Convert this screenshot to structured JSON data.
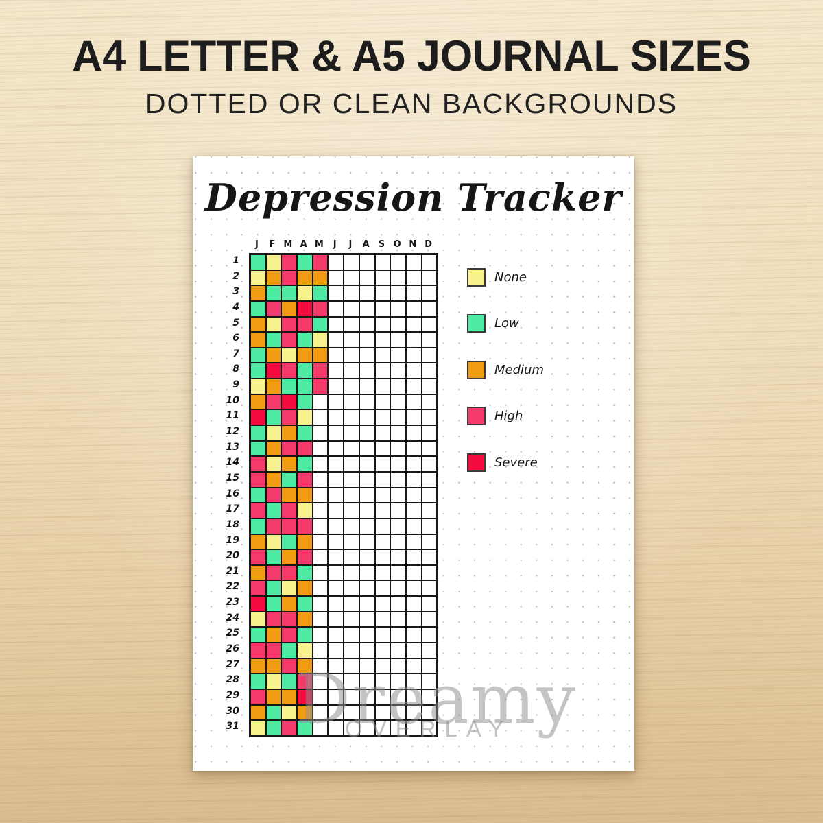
{
  "header": {
    "line1": "A4 LETTER & A5 JOURNAL SIZES",
    "line2": "DOTTED OR CLEAN BACKGROUNDS"
  },
  "page": {
    "title": "Depression Tracker",
    "watermark_line1": "Dreamy",
    "watermark_line2": "OVERLAY"
  },
  "legend": {
    "items": [
      {
        "label": "None",
        "color": "#F7F18E"
      },
      {
        "label": "Low",
        "color": "#4FEBA5"
      },
      {
        "label": "Medium",
        "color": "#F19C12"
      },
      {
        "label": "High",
        "color": "#F43A6A"
      },
      {
        "label": "Severe",
        "color": "#F40A3E"
      }
    ]
  },
  "chart_data": {
    "type": "heatmap",
    "title": "Depression Tracker",
    "x_labels": [
      "J",
      "F",
      "M",
      "A",
      "M",
      "J",
      "J",
      "A",
      "S",
      "O",
      "N",
      "D"
    ],
    "y_labels": [
      1,
      2,
      3,
      4,
      5,
      6,
      7,
      8,
      9,
      10,
      11,
      12,
      13,
      14,
      15,
      16,
      17,
      18,
      19,
      20,
      21,
      22,
      23,
      24,
      25,
      26,
      27,
      28,
      29,
      30,
      31
    ],
    "num_columns": 12,
    "color_key": {
      "N": {
        "label": "None",
        "color": "#F7F18E"
      },
      "L": {
        "label": "Low",
        "color": "#4FEBA5"
      },
      "M": {
        "label": "Medium",
        "color": "#F19C12"
      },
      "H": {
        "label": "High",
        "color": "#F43A6A"
      },
      "S": {
        "label": "Severe",
        "color": "#F40A3E"
      }
    },
    "cells": [
      [
        "L",
        "N",
        "H",
        "L",
        "H"
      ],
      [
        "N",
        "M",
        "H",
        "M",
        "M"
      ],
      [
        "M",
        "L",
        "L",
        "N",
        "L"
      ],
      [
        "L",
        "H",
        "M",
        "S",
        "H"
      ],
      [
        "M",
        "N",
        "H",
        "H",
        "L"
      ],
      [
        "M",
        "L",
        "H",
        "L",
        "N"
      ],
      [
        "L",
        "M",
        "N",
        "M",
        "M"
      ],
      [
        "L",
        "S",
        "H",
        "L",
        "H"
      ],
      [
        "N",
        "M",
        "L",
        "L",
        "H"
      ],
      [
        "M",
        "H",
        "S",
        "L"
      ],
      [
        "S",
        "L",
        "H",
        "N"
      ],
      [
        "L",
        "N",
        "M",
        "L"
      ],
      [
        "L",
        "M",
        "H",
        "H"
      ],
      [
        "H",
        "N",
        "M",
        "L"
      ],
      [
        "H",
        "M",
        "L",
        "H"
      ],
      [
        "L",
        "H",
        "M",
        "M"
      ],
      [
        "H",
        "L",
        "H",
        "N"
      ],
      [
        "L",
        "H",
        "H",
        "H"
      ],
      [
        "M",
        "N",
        "L",
        "M"
      ],
      [
        "H",
        "L",
        "M",
        "H"
      ],
      [
        "M",
        "H",
        "H",
        "L"
      ],
      [
        "H",
        "L",
        "N",
        "M"
      ],
      [
        "S",
        "L",
        "M",
        "L"
      ],
      [
        "N",
        "H",
        "H",
        "M"
      ],
      [
        "L",
        "M",
        "H",
        "L"
      ],
      [
        "H",
        "H",
        "L",
        "N"
      ],
      [
        "M",
        "M",
        "H",
        "M"
      ],
      [
        "L",
        "N",
        "L",
        "H"
      ],
      [
        "H",
        "M",
        "M",
        "S"
      ],
      [
        "M",
        "L",
        "N",
        "M"
      ],
      [
        "N",
        "L",
        "H",
        "L"
      ]
    ]
  }
}
